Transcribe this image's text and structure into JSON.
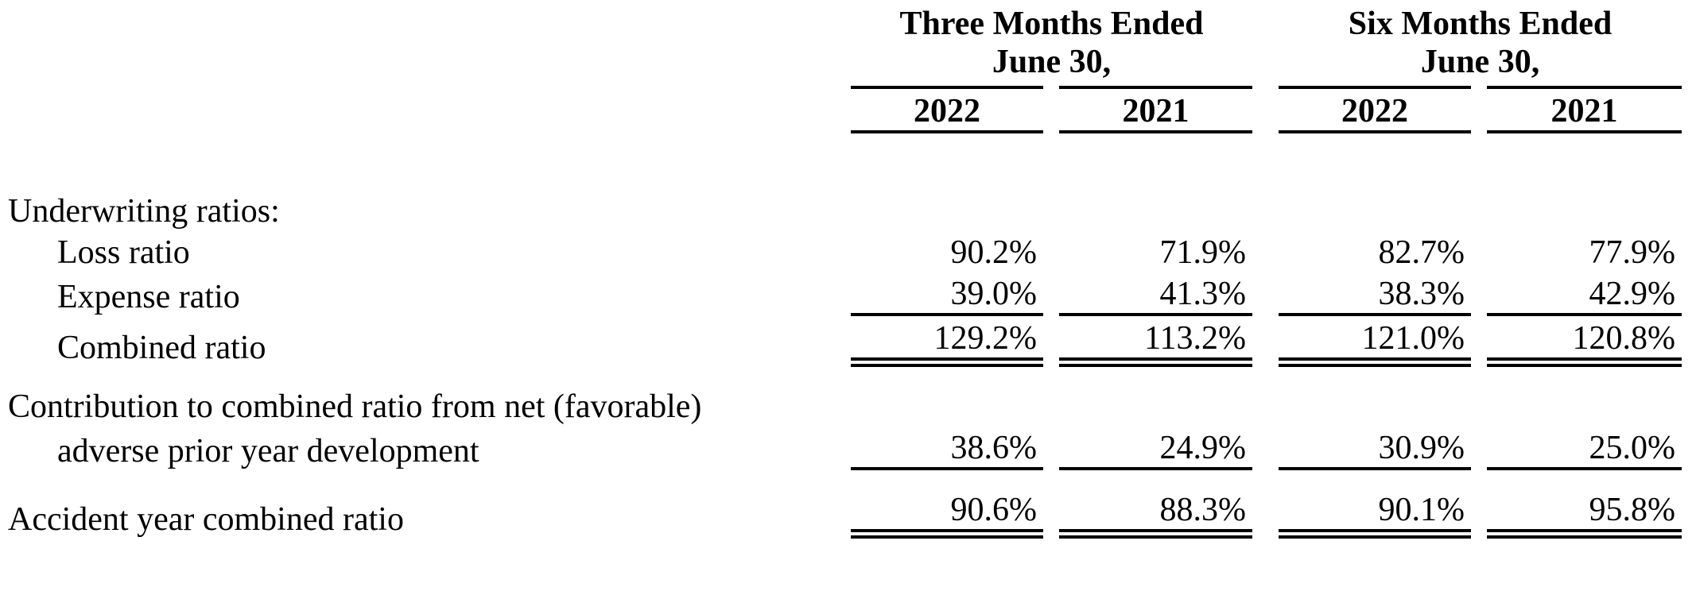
{
  "colors": {
    "text": "#000000",
    "background": "#ffffff",
    "rule": "#000000"
  },
  "table": {
    "col_groups": [
      {
        "title_line1": "Three Months Ended",
        "title_line2": "June 30,",
        "years": [
          "2022",
          "2021"
        ]
      },
      {
        "title_line1": "Six Months Ended",
        "title_line2": "June 30,",
        "years": [
          "2022",
          "2021"
        ]
      }
    ],
    "rows": [
      {
        "label": "Underwriting ratios:",
        "indent": 0,
        "values": null,
        "rule": "none",
        "spacer_before": false
      },
      {
        "label": "Loss ratio",
        "indent": 1,
        "values": [
          "90.2%",
          "71.9%",
          "82.7%",
          "77.9%"
        ],
        "rule": "none",
        "spacer_before": false
      },
      {
        "label": "Expense ratio",
        "indent": 1,
        "values": [
          "39.0%",
          "41.3%",
          "38.3%",
          "42.9%"
        ],
        "rule": "single",
        "spacer_before": false
      },
      {
        "label": "Combined ratio",
        "indent": 1,
        "values": [
          "129.2%",
          "113.2%",
          "121.0%",
          "120.8%"
        ],
        "rule": "double",
        "spacer_before": false
      },
      {
        "label": "Contribution to combined ratio from net (favorable)",
        "indent": 0,
        "values": null,
        "rule": "none",
        "spacer_before": true
      },
      {
        "label": "adverse prior year development",
        "indent": 1,
        "values": [
          "38.6%",
          "24.9%",
          "30.9%",
          "25.0%"
        ],
        "rule": "single",
        "spacer_before": false
      },
      {
        "label": "Accident year combined ratio",
        "indent": 0,
        "values": [
          "90.6%",
          "88.3%",
          "90.1%",
          "95.8%"
        ],
        "rule": "double",
        "spacer_before": true
      }
    ]
  }
}
